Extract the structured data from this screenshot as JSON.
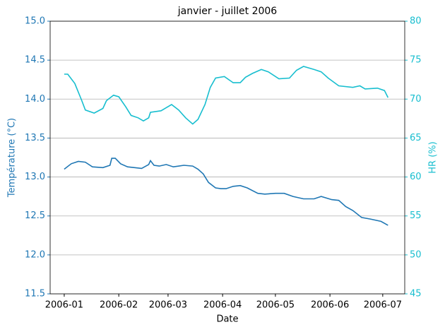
{
  "chart_data": {
    "type": "line",
    "title": "janvier - juillet 2006",
    "xlabel": "Date",
    "ylabel": "Température (°C)",
    "y2label": "HR (%)",
    "xlim": [
      -8,
      193.5
    ],
    "xticks": [
      {
        "value": 0,
        "label": "2006-01"
      },
      {
        "value": 31,
        "label": "2006-02"
      },
      {
        "value": 59,
        "label": "2006-03"
      },
      {
        "value": 90,
        "label": "2006-04"
      },
      {
        "value": 120,
        "label": "2006-05"
      },
      {
        "value": 151,
        "label": "2006-06"
      },
      {
        "value": 181,
        "label": "2006-07"
      }
    ],
    "ylim": [
      11.5,
      15.0
    ],
    "yticks": [
      {
        "value": 11.5,
        "label": "11.5"
      },
      {
        "value": 12,
        "label": "12.0"
      },
      {
        "value": 12.5,
        "label": "12.5"
      },
      {
        "value": 13,
        "label": "13.0"
      },
      {
        "value": 13.5,
        "label": "13.5"
      },
      {
        "value": 14,
        "label": "14.0"
      },
      {
        "value": 14.5,
        "label": "14.5"
      },
      {
        "value": 15,
        "label": "15.0"
      }
    ],
    "y2lim": [
      45,
      80
    ],
    "y2ticks": [
      45,
      50,
      55,
      60,
      65,
      70,
      75,
      80
    ],
    "grid": true,
    "y_color": "#1f77b4",
    "y2_color": "#17becf",
    "series": [
      {
        "color": "#1f77b4",
        "x": [
          0,
          4,
          8,
          12,
          16,
          22,
          26,
          27,
          29,
          32,
          36,
          40,
          44,
          48,
          49,
          51,
          54,
          58,
          62,
          68,
          73,
          76,
          79,
          82,
          86,
          89,
          92,
          96,
          100,
          104,
          110,
          114,
          120,
          125,
          130,
          136,
          142,
          146,
          152,
          156,
          160,
          164,
          169,
          174,
          180,
          184
        ],
        "values": [
          13.1,
          13.17,
          13.2,
          13.19,
          13.13,
          13.12,
          13.15,
          13.24,
          13.24,
          13.17,
          13.13,
          13.12,
          13.11,
          13.16,
          13.21,
          13.15,
          13.14,
          13.16,
          13.13,
          13.15,
          13.14,
          13.1,
          13.04,
          12.93,
          12.86,
          12.85,
          12.85,
          12.88,
          12.89,
          12.86,
          12.79,
          12.78,
          12.79,
          12.79,
          12.75,
          12.72,
          12.72,
          12.75,
          12.71,
          12.7,
          12.62,
          12.57,
          12.48,
          12.46,
          12.43,
          12.38
        ]
      },
      {
        "color": "#17becf",
        "axis": "y2",
        "x": [
          0,
          2,
          6,
          10,
          12,
          17,
          22,
          24,
          28,
          31,
          35,
          38,
          42,
          45,
          48,
          49,
          55,
          58,
          61,
          65,
          69,
          73,
          76,
          80,
          83,
          86,
          91,
          96,
          100,
          103,
          107,
          112,
          116,
          122,
          128,
          132,
          136,
          142,
          146,
          150,
          156,
          164,
          168,
          171,
          178,
          182,
          184
        ],
        "values": [
          73.2,
          73.2,
          72.0,
          69.8,
          68.6,
          68.2,
          68.8,
          69.8,
          70.5,
          70.3,
          69.0,
          67.9,
          67.6,
          67.2,
          67.6,
          68.3,
          68.5,
          68.9,
          69.3,
          68.6,
          67.6,
          66.8,
          67.4,
          69.3,
          71.5,
          72.7,
          72.9,
          72.1,
          72.1,
          72.8,
          73.3,
          73.8,
          73.5,
          72.6,
          72.7,
          73.7,
          74.2,
          73.8,
          73.5,
          72.7,
          71.7,
          71.5,
          71.7,
          71.3,
          71.4,
          71.1,
          70.2
        ]
      }
    ]
  }
}
